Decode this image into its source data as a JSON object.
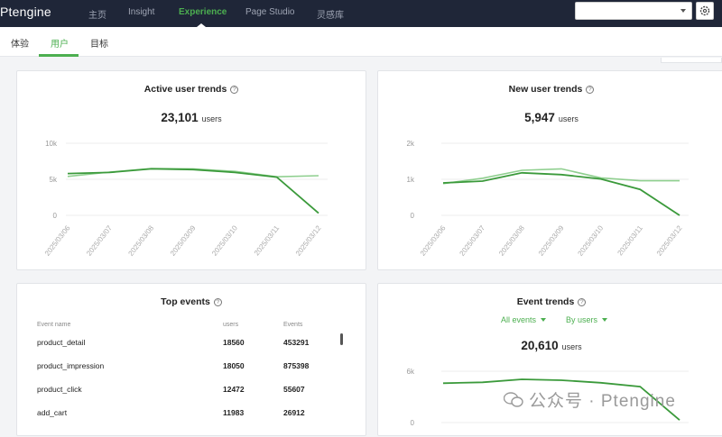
{
  "app": {
    "logo": "Ptengine"
  },
  "nav": {
    "items": [
      {
        "label": "主页",
        "active": false
      },
      {
        "label": "Insight",
        "active": false
      },
      {
        "label": "Experience",
        "active": true
      },
      {
        "label": "Page Studio",
        "active": false
      },
      {
        "label": "灵感库",
        "active": false
      }
    ]
  },
  "subnav": {
    "tabs": [
      {
        "label": "体验",
        "active": false
      },
      {
        "label": "用户",
        "active": true
      },
      {
        "label": "目标",
        "active": false
      }
    ]
  },
  "active_users": {
    "title": "Active user trends",
    "total": "23,101",
    "unit": "users"
  },
  "new_users": {
    "title": "New user trends",
    "total": "5,947",
    "unit": "users"
  },
  "top_events": {
    "title": "Top events",
    "columns": [
      "Event name",
      "users",
      "Events"
    ],
    "rows": [
      {
        "name": "product_detail",
        "users": "18560",
        "events": "453291"
      },
      {
        "name": "product_impression",
        "users": "18050",
        "events": "875398"
      },
      {
        "name": "product_click",
        "users": "12472",
        "events": "55607"
      },
      {
        "name": "add_cart",
        "users": "11983",
        "events": "26912"
      }
    ]
  },
  "event_trends": {
    "title": "Event trends",
    "filter_events": "All events",
    "filter_by": "By users",
    "total": "20,610",
    "unit": "users"
  },
  "watermark": "公众号 · Ptengine",
  "colors": {
    "accent": "#4caf50",
    "line_dark": "#3b9a3b",
    "line_light": "#8fcf8f",
    "nav_bg": "#1f2638"
  },
  "chart_data": [
    {
      "type": "line",
      "title": "Active user trends",
      "x": [
        "2025/03/06",
        "2025/03/07",
        "2025/03/08",
        "2025/03/09",
        "2025/03/10",
        "2025/03/11",
        "2025/03/12"
      ],
      "y_ticks": [
        "10k",
        "5k",
        "0"
      ],
      "ylim": [
        0,
        10000
      ],
      "series": [
        {
          "values": [
            5800,
            5950,
            6450,
            6350,
            5950,
            5300,
            300
          ]
        },
        {
          "values": [
            5400,
            6000,
            6500,
            6450,
            6100,
            5350,
            5500
          ]
        }
      ]
    },
    {
      "type": "line",
      "title": "New user trends",
      "x": [
        "2025/03/06",
        "2025/03/07",
        "2025/03/08",
        "2025/03/09",
        "2025/03/10",
        "2025/03/11",
        "2025/03/12"
      ],
      "y_ticks": [
        "2k",
        "1k",
        "0"
      ],
      "ylim": [
        0,
        2000
      ],
      "series": [
        {
          "values": [
            900,
            950,
            1180,
            1130,
            1010,
            720,
            0
          ]
        },
        {
          "values": [
            880,
            1030,
            1250,
            1290,
            1040,
            960,
            960
          ]
        }
      ]
    },
    {
      "type": "line",
      "title": "Event trends",
      "y_ticks": [
        "6k",
        "0"
      ],
      "ylim": [
        0,
        6000
      ],
      "series": [
        {
          "values": [
            4600,
            4700,
            5050,
            4950,
            4650,
            4200,
            300
          ]
        }
      ]
    }
  ]
}
